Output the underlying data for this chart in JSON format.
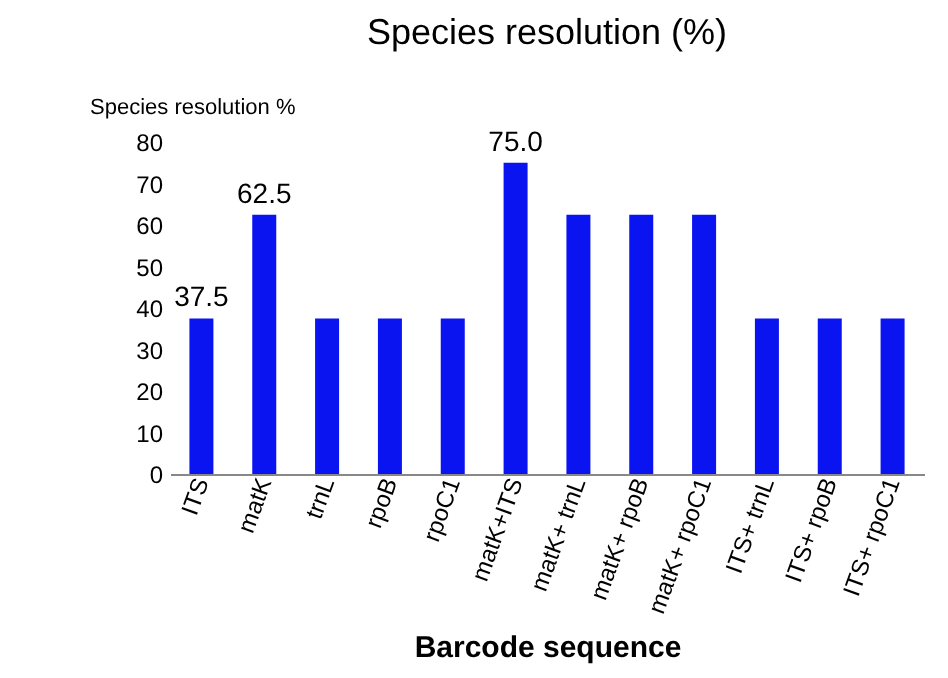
{
  "chart_data": {
    "type": "bar",
    "title": "Species resolution (%)",
    "ylabel": "Species resolution %",
    "xlabel": "Barcode sequence",
    "categories": [
      "ITS",
      "matK",
      "trnL",
      "rpoB",
      "rpoC1",
      "matK+ITS",
      "matK+ trnL",
      "matK+ rpoB",
      "matK+ rpoC1",
      "ITS+ trnL",
      "ITS+ rpoB",
      "ITS+ rpoC1"
    ],
    "values": [
      37.5,
      62.5,
      37.5,
      37.5,
      37.5,
      75.0,
      62.5,
      62.5,
      62.5,
      37.5,
      37.5,
      37.5
    ],
    "value_labels": [
      "37.5",
      "62.5",
      null,
      null,
      null,
      "75.0",
      null,
      null,
      null,
      null,
      null,
      null
    ],
    "color": "#0a14f0",
    "ylim": [
      0,
      80
    ],
    "yticks": [
      0,
      10,
      20,
      30,
      40,
      50,
      60,
      70,
      80
    ],
    "grid": false
  }
}
